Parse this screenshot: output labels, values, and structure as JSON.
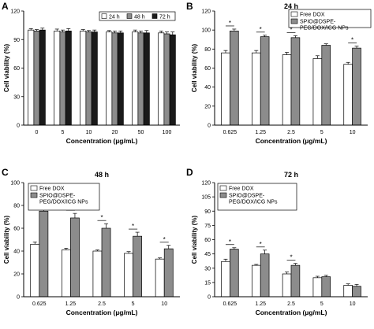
{
  "chart_data": [
    {
      "type": "bar",
      "panel_label": "A",
      "title": "",
      "xlabel": "Concentration (µg/mL)",
      "ylabel": "Cell viability (%)",
      "ylim": [
        0,
        120
      ],
      "yticks": [
        "0",
        "30",
        "60",
        "90",
        "120"
      ],
      "categories": [
        "0",
        "5",
        "10",
        "20",
        "50",
        "100"
      ],
      "legend_position": "top-right",
      "series": [
        {
          "name": "24 h",
          "color": "#ffffff",
          "values": [
            100,
            99,
            99,
            98,
            98,
            97
          ],
          "errors": [
            1.5,
            2,
            1.5,
            1.5,
            2,
            2
          ]
        },
        {
          "name": "48 h",
          "color": "#8c8c8c",
          "values": [
            99,
            98,
            98,
            97,
            97,
            96
          ],
          "errors": [
            1.5,
            2,
            1.5,
            2,
            2,
            2
          ]
        },
        {
          "name": "72 h",
          "color": "#1a1a1a",
          "values": [
            100,
            99,
            98,
            97,
            97,
            95
          ],
          "errors": [
            2,
            2.5,
            2,
            2,
            2.5,
            3
          ]
        }
      ],
      "significance": []
    },
    {
      "type": "bar",
      "panel_label": "B",
      "title": "24 h",
      "xlabel": "Concentration (µg/mL)",
      "ylabel": "Cell viability (%)",
      "ylim": [
        0,
        120
      ],
      "yticks": [
        "0",
        "20",
        "40",
        "60",
        "80",
        "100",
        "120"
      ],
      "categories": [
        "0.625",
        "1.25",
        "2.5",
        "5",
        "10"
      ],
      "legend_position": "top-right",
      "series": [
        {
          "name": "Free DOX",
          "color": "#ffffff",
          "values": [
            76,
            76,
            74,
            70,
            64
          ],
          "errors": [
            2.5,
            2.5,
            2.5,
            3,
            2
          ]
        },
        {
          "name": "SPIO@DSPE-PEG/DOX/ICG NPs",
          "color": "#8c8c8c",
          "values": [
            99,
            93,
            92,
            84,
            81
          ],
          "errors": [
            2,
            1.5,
            2,
            1.5,
            2
          ]
        }
      ],
      "significance": [
        "*",
        "*",
        "*",
        "",
        "*"
      ]
    },
    {
      "type": "bar",
      "panel_label": "C",
      "title": "48 h",
      "xlabel": "Concentration (µg/mL)",
      "ylabel": "Cell viability (%)",
      "ylim": [
        0,
        100
      ],
      "yticks": [
        "0",
        "20",
        "40",
        "60",
        "80",
        "100"
      ],
      "categories": [
        "0.625",
        "1.25",
        "2.5",
        "5",
        "10"
      ],
      "legend_position": "top-left",
      "series": [
        {
          "name": "Free DOX",
          "color": "#ffffff",
          "values": [
            46,
            41,
            40,
            38,
            33
          ],
          "errors": [
            2,
            1.5,
            1,
            1.5,
            1
          ]
        },
        {
          "name": "SPIO@DSPE-PEG/DOX/ICG NPs",
          "color": "#8c8c8c",
          "values": [
            75,
            69,
            60,
            53,
            42
          ],
          "errors": [
            3,
            4,
            4,
            3.5,
            3
          ]
        }
      ],
      "significance": [
        "*",
        "*",
        "*",
        "*",
        "*"
      ]
    },
    {
      "type": "bar",
      "panel_label": "D",
      "title": "72 h",
      "xlabel": "Concentration (µg/mL)",
      "ylabel": "Cell viability (%)",
      "ylim": [
        0,
        120
      ],
      "yticks": [
        "0",
        "15",
        "30",
        "45",
        "60",
        "75",
        "90",
        "105",
        "120"
      ],
      "categories": [
        "0.625",
        "1.25",
        "2.5",
        "5",
        "10"
      ],
      "legend_position": "top-right",
      "series": [
        {
          "name": "Free DOX",
          "color": "#ffffff",
          "values": [
            37,
            33,
            24,
            20,
            12
          ],
          "errors": [
            2.5,
            1,
            2,
            1.5,
            1.5
          ]
        },
        {
          "name": "SPIO@DSPE-PEG/DOX/ICG NPs",
          "color": "#8c8c8c",
          "values": [
            50,
            45,
            33,
            21,
            11
          ],
          "errors": [
            1.5,
            4,
            2,
            1.5,
            2
          ]
        }
      ],
      "significance": [
        "*",
        "*",
        "*",
        "",
        ""
      ]
    }
  ]
}
